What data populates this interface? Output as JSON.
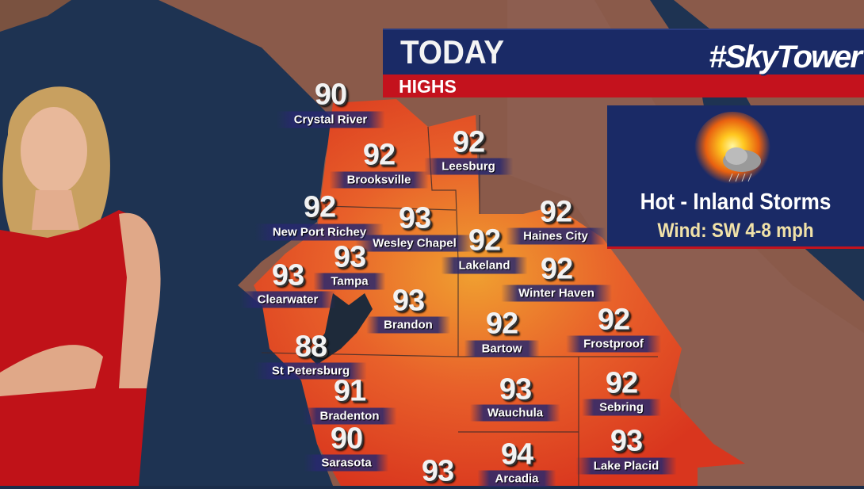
{
  "header": {
    "title": "TODAY",
    "subtitle": "HIGHS",
    "brand": "#SkyTower"
  },
  "forecast": {
    "icon": "sun-with-storm-cloud-icon",
    "condition": "Hot - Inland Storms",
    "wind": "Wind: SW 4-8 mph"
  },
  "colors": {
    "header_blue": "#1a2a66",
    "header_red": "#c4121d",
    "wind_text": "#f1e2a8"
  },
  "cities": [
    {
      "name": "Crystal River",
      "high": "90"
    },
    {
      "name": "Brooksville",
      "high": "92"
    },
    {
      "name": "Leesburg",
      "high": "92"
    },
    {
      "name": "New Port Richey",
      "high": "92"
    },
    {
      "name": "Wesley Chapel",
      "high": "93"
    },
    {
      "name": "Haines City",
      "high": "92"
    },
    {
      "name": "Lakeland",
      "high": "92"
    },
    {
      "name": "Tampa",
      "high": "93"
    },
    {
      "name": "Winter Haven",
      "high": "92"
    },
    {
      "name": "Clearwater",
      "high": "93"
    },
    {
      "name": "Brandon",
      "high": "93"
    },
    {
      "name": "Bartow",
      "high": "92"
    },
    {
      "name": "Frostproof",
      "high": "92"
    },
    {
      "name": "St Petersburg",
      "high": "88"
    },
    {
      "name": "Wauchula",
      "high": "93"
    },
    {
      "name": "Sebring",
      "high": "92"
    },
    {
      "name": "Bradenton",
      "high": "91"
    },
    {
      "name": "Sarasota",
      "high": "90"
    },
    {
      "name": "Lake Placid",
      "high": "93"
    },
    {
      "name": "Arcadia",
      "high": "94"
    },
    {
      "name": "",
      "high": "93"
    }
  ]
}
